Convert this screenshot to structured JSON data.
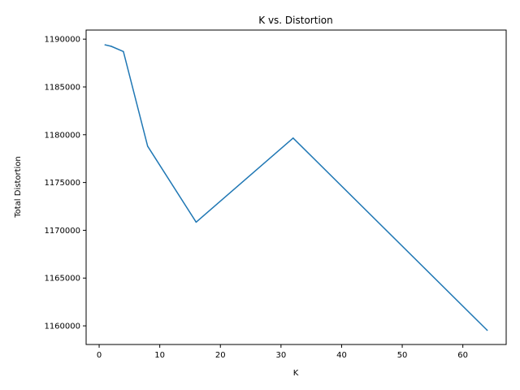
{
  "chart_data": {
    "type": "line",
    "title": "K vs. Distortion",
    "xlabel": "K",
    "ylabel": "Total Distortion",
    "xlim": [
      -2.15,
      67.15
    ],
    "ylim": [
      1158050,
      1190950
    ],
    "xticks": [
      0,
      10,
      20,
      30,
      40,
      50,
      60
    ],
    "xtick_labels": [
      "0",
      "10",
      "20",
      "30",
      "40",
      "50",
      "60"
    ],
    "yticks": [
      1160000,
      1165000,
      1170000,
      1175000,
      1180000,
      1185000,
      1190000
    ],
    "ytick_labels": [
      "1160000",
      "1165000",
      "1170000",
      "1175000",
      "1180000",
      "1185000",
      "1190000"
    ],
    "grid": false,
    "series": [
      {
        "color": "#1f77b4",
        "x": [
          1,
          2,
          4,
          8,
          16,
          32,
          64
        ],
        "y": [
          1189400,
          1189250,
          1188700,
          1178800,
          1170850,
          1179650,
          1159550
        ]
      }
    ]
  }
}
